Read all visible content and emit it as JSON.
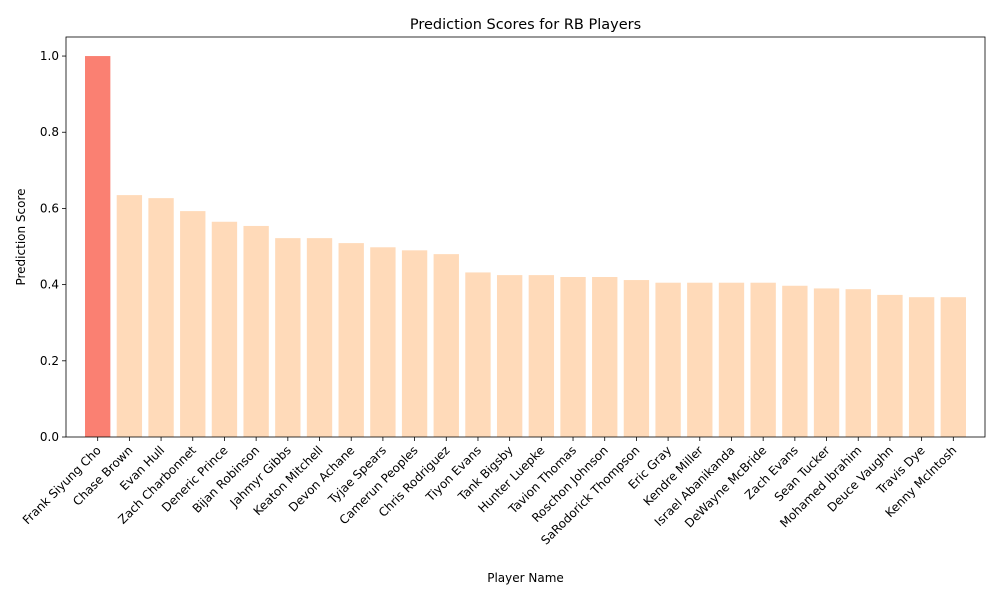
{
  "chart_data": {
    "type": "bar",
    "title": "Prediction Scores for RB Players",
    "xlabel": "Player Name",
    "ylabel": "Prediction Score",
    "ylim": [
      0,
      1.05
    ],
    "yticks": [
      "0.0",
      "0.2",
      "0.4",
      "0.6",
      "0.8",
      "1.0"
    ],
    "grid": false,
    "colors": {
      "highlight": "#fa8072",
      "default": "#ffdab9"
    },
    "highlight_index": 0,
    "categories": [
      "Frank Siyung Cho",
      "Chase Brown",
      "Evan Hull",
      "Zach Charbonnet",
      "Deneric Prince",
      "Bijan Robinson",
      "Jahmyr Gibbs",
      "Keaton Mitchell",
      "Devon Achane",
      "Tyjae Spears",
      "Camerun Peoples",
      "Chris Rodriguez",
      "Tiyon Evans",
      "Tank Bigsby",
      "Hunter Luepke",
      "Tavion Thomas",
      "Roschon Johnson",
      "SaRodorick Thompson",
      "Eric Gray",
      "Kendre Miller",
      "Israel Abanikanda",
      "DeWayne McBride",
      "Zach Evans",
      "Sean Tucker",
      "Mohamed Ibrahim",
      "Deuce Vaughn",
      "Travis Dye",
      "Kenny McIntosh"
    ],
    "values": [
      1.0,
      0.635,
      0.627,
      0.593,
      0.565,
      0.554,
      0.522,
      0.522,
      0.509,
      0.498,
      0.49,
      0.48,
      0.432,
      0.425,
      0.425,
      0.42,
      0.42,
      0.412,
      0.405,
      0.405,
      0.405,
      0.405,
      0.397,
      0.39,
      0.388,
      0.373,
      0.367,
      0.367
    ]
  }
}
